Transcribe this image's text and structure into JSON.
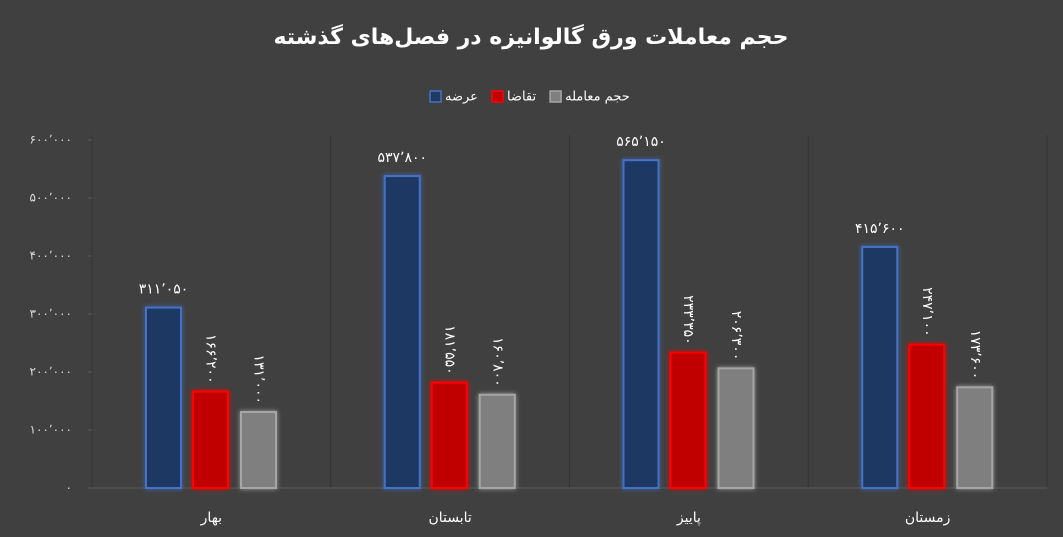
{
  "chart_data": {
    "type": "bar",
    "title": "حجم معاملات ورق گالوانیزه در فصل‌های گذشته",
    "categories": [
      "بهار",
      "تابستان",
      "پاییز",
      "زمستان"
    ],
    "series": [
      {
        "name": "عرضه",
        "color": "#1f3864",
        "values": [
          311050,
          537800,
          565150,
          415600
        ],
        "value_labels": [
          "۳۱۱٬۰۵۰",
          "۵۳۷٬۸۰۰",
          "۵۶۵٬۱۵۰",
          "۴۱۵٬۶۰۰"
        ]
      },
      {
        "name": "تقاضا",
        "color": "#c00000",
        "values": [
          166200,
          181550,
          233350,
          247100
        ],
        "value_labels": [
          "۱۶۶٬۲۰۰",
          "۱۸۱٬۵۵۰",
          "۲۳۳٬۳۵۰",
          "۲۴۷٬۱۰۰"
        ]
      },
      {
        "name": "حجم معامله",
        "color": "#7f7f7f",
        "values": [
          131000,
          160800,
          206300,
          173600
        ],
        "value_labels": [
          "۱۳۱٬۰۰۰",
          "۱۶۰٬۸۰۰",
          "۲۰۶٬۳۰۰",
          "۱۷۳٬۶۰۰"
        ]
      }
    ],
    "ylim": [
      0,
      600000
    ],
    "yticks": [
      {
        "value": 0,
        "label": "۰"
      },
      {
        "value": 100000,
        "label": "۱۰۰٬۰۰۰"
      },
      {
        "value": 200000,
        "label": "۲۰۰٬۰۰۰"
      },
      {
        "value": 300000,
        "label": "۳۰۰٬۰۰۰"
      },
      {
        "value": 400000,
        "label": "۴۰۰٬۰۰۰"
      },
      {
        "value": 500000,
        "label": "۵۰۰٬۰۰۰"
      },
      {
        "value": 600000,
        "label": "۶۰۰٬۰۰۰"
      }
    ]
  }
}
